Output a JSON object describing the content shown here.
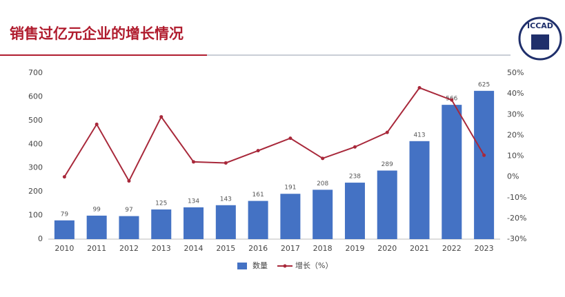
{
  "title": "销售过亿元企业的增长情况",
  "logo": "ICCAD",
  "chart_data": {
    "type": "bar",
    "categories": [
      "2010",
      "2011",
      "2012",
      "2013",
      "2014",
      "2015",
      "2016",
      "2017",
      "2018",
      "2019",
      "2020",
      "2021",
      "2022",
      "2023"
    ],
    "series": [
      {
        "name": "数量",
        "type": "bar",
        "color": "#4472c4",
        "values": [
          79,
          99,
          97,
          125,
          134,
          143,
          161,
          191,
          208,
          238,
          289,
          413,
          566,
          625
        ]
      },
      {
        "name": "增长（%）",
        "type": "line",
        "axis": "y2",
        "color": "#a8283a",
        "values": [
          0,
          25.3,
          -2.0,
          28.9,
          7.2,
          6.7,
          12.6,
          18.6,
          8.9,
          14.4,
          21.4,
          42.9,
          37.0,
          10.4
        ]
      }
    ],
    "ylim": [
      0,
      700
    ],
    "yticks": [
      0,
      100,
      200,
      300,
      400,
      500,
      600,
      700
    ],
    "y2lim": [
      -30,
      50
    ],
    "y2ticks": [
      {
        "value": 50,
        "label": "50%"
      },
      {
        "value": 40,
        "label": "40%"
      },
      {
        "value": 30,
        "label": "30%"
      },
      {
        "value": 20,
        "label": "20%"
      },
      {
        "value": 10,
        "label": "10%"
      },
      {
        "value": 0,
        "label": "0%"
      },
      {
        "value": -10,
        "label": "-10%"
      },
      {
        "value": -20,
        "label": "-20%"
      },
      {
        "value": -30,
        "label": "-30%"
      }
    ],
    "grid": false,
    "legend": "bottom"
  }
}
